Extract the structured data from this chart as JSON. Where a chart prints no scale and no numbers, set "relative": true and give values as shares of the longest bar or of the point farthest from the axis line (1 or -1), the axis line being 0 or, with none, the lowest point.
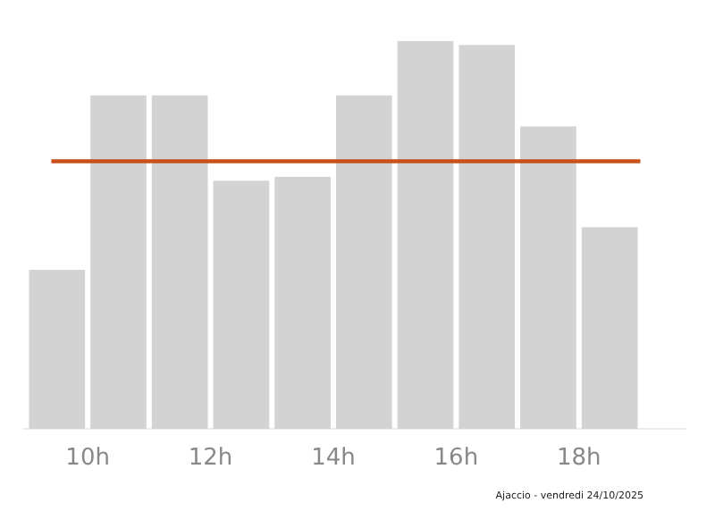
{
  "chart_data": {
    "type": "bar",
    "relative": true,
    "color": "#d3d3d3",
    "x": [
      9.5,
      10.5,
      11.5,
      12.5,
      13.5,
      14.5,
      15.5,
      16.5,
      17.5,
      18.5
    ],
    "values": [
      0.41,
      0.86,
      0.86,
      0.64,
      0.65,
      0.86,
      1,
      0.99,
      0.78,
      0.52
    ],
    "xlim": [
      8.95,
      19.75
    ],
    "xticks": [
      {
        "value": 10,
        "label": "10h"
      },
      {
        "value": 12,
        "label": "12h"
      },
      {
        "value": 14,
        "label": "14h"
      },
      {
        "value": 16,
        "label": "16h"
      },
      {
        "value": 18,
        "label": "18h"
      }
    ],
    "ref_lines": [
      {
        "axis": "y",
        "value": 0.69,
        "color": "#c8501e"
      }
    ],
    "annotations": [
      "Ajaccio - vendredi 24/10/2025"
    ],
    "grid": false
  }
}
